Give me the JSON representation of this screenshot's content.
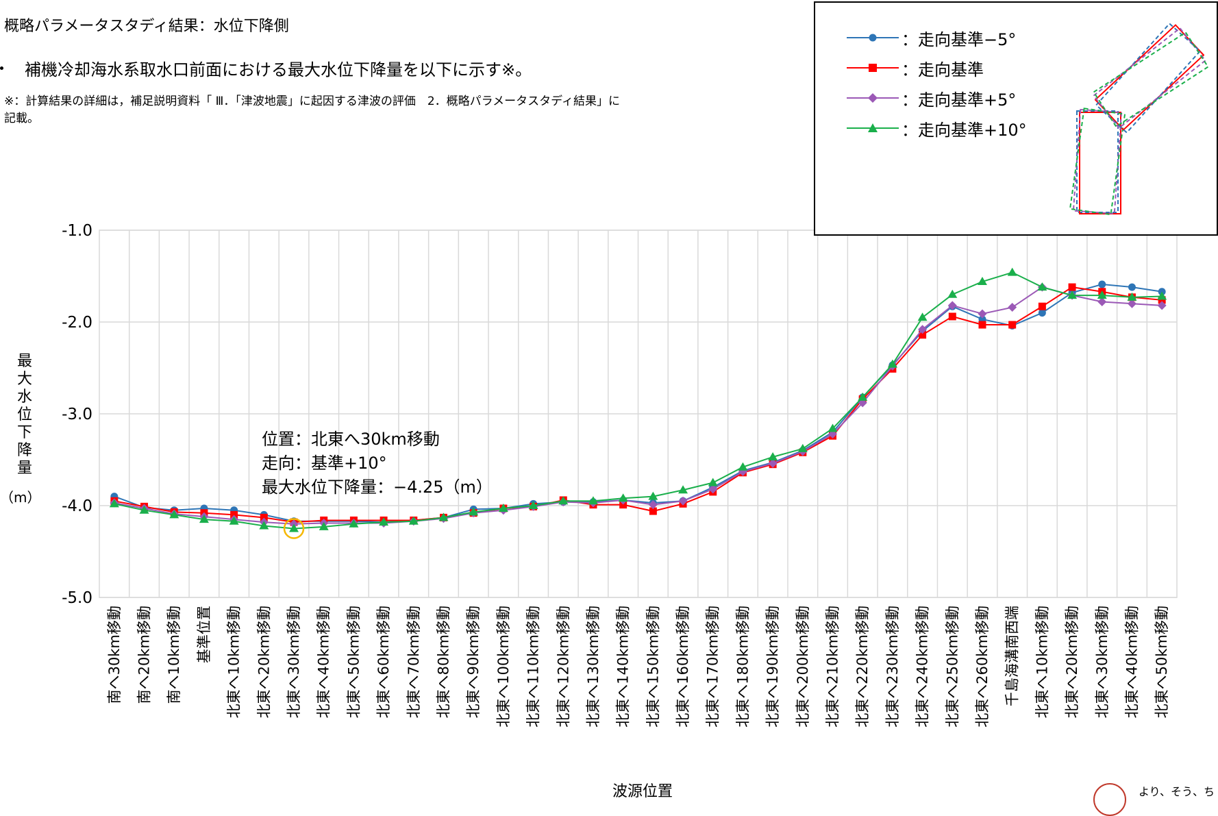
{
  "title": "概略パラメータスタディ結果：水位下降側",
  "bullet": "補機冷却海水系取水口前面における最大水位下降量を以下に示す※。",
  "note": "※：計算結果の詳細は，補足説明資料「 Ⅲ．「津波地震」に起因する津波の評価　2．概略パラメータスタディ結果」に記載。",
  "annotation": {
    "line1": "位置：北東へ30km移動",
    "line2": "走向：基準+10°",
    "line3": "最大水位下降量：−4.25（m）"
  },
  "ylabel_chars": "最大水位下降量",
  "ylabel_unit": "（m）",
  "xlabel": "波源位置",
  "seal_text": "より、そう、ち",
  "colors": {
    "s1": "#2e75b6",
    "s2": "#ff0000",
    "s3": "#9b59b6",
    "s4": "#1aaf4b",
    "grid": "#d9d9d9",
    "highlight": "#f5b800"
  },
  "legend": [
    {
      "label": "：走向基準−5°",
      "marker": "circle",
      "color": "#2e75b6"
    },
    {
      "label": "：走向基準",
      "marker": "square",
      "color": "#ff0000"
    },
    {
      "label": "：走向基準+5°",
      "marker": "diamond",
      "color": "#9b59b6"
    },
    {
      "label": "：走向基準+10°",
      "marker": "triangle",
      "color": "#1aaf4b"
    }
  ],
  "chart_data": {
    "type": "line",
    "categories": [
      "南へ30km移動",
      "南へ20km移動",
      "南へ10km移動",
      "基準位置",
      "北東へ10km移動",
      "北東へ20km移動",
      "北東へ30km移動",
      "北東へ40km移動",
      "北東へ50km移動",
      "北東へ60km移動",
      "北東へ70km移動",
      "北東へ80km移動",
      "北東へ90km移動",
      "北東へ100km移動",
      "北東へ110km移動",
      "北東へ120km移動",
      "北東へ130km移動",
      "北東へ140km移動",
      "北東へ150km移動",
      "北東へ160km移動",
      "北東へ170km移動",
      "北東へ180km移動",
      "北東へ190km移動",
      "北東へ200km移動",
      "北東へ210km移動",
      "北東へ220km移動",
      "北東へ230km移動",
      "北東へ240km移動",
      "北東へ250km移動",
      "北東へ260km移動",
      "千島海溝南西端",
      "北東へ10km移動",
      "北東へ20km移動",
      "北東へ30km移動",
      "北東へ40km移動",
      "北東へ50km移動"
    ],
    "ylim": [
      -5.0,
      -1.0
    ],
    "yticks": [
      "-1.0",
      "-2.0",
      "-3.0",
      "-4.0",
      "-5.0"
    ],
    "grid": true,
    "series": [
      {
        "name": "走向基準−5°",
        "values": [
          -3.9,
          -4.02,
          -4.05,
          -4.03,
          -4.05,
          -4.1,
          -4.17,
          -4.17,
          -4.17,
          -4.18,
          -4.16,
          -4.13,
          -4.04,
          -4.03,
          -3.98,
          -3.96,
          -3.96,
          -3.94,
          -3.97,
          -3.95,
          -3.8,
          -3.62,
          -3.53,
          -3.4,
          -3.2,
          -2.82,
          -2.47,
          -2.1,
          -1.83,
          -1.97,
          -2.04,
          -1.9,
          -1.68,
          -1.59,
          -1.62,
          -1.67
        ]
      },
      {
        "name": "走向基準",
        "values": [
          -3.95,
          -4.01,
          -4.07,
          -4.08,
          -4.1,
          -4.13,
          -4.18,
          -4.16,
          -4.16,
          -4.16,
          -4.16,
          -4.13,
          -4.08,
          -4.03,
          -4.01,
          -3.94,
          -3.99,
          -3.99,
          -4.06,
          -3.98,
          -3.85,
          -3.64,
          -3.55,
          -3.42,
          -3.24,
          -2.84,
          -2.51,
          -2.14,
          -1.94,
          -2.03,
          -2.03,
          -1.83,
          -1.62,
          -1.67,
          -1.73,
          -1.76
        ]
      },
      {
        "name": "走向基準+5°",
        "values": [
          -3.97,
          -4.03,
          -4.09,
          -4.12,
          -4.15,
          -4.18,
          -4.2,
          -4.19,
          -4.19,
          -4.19,
          -4.17,
          -4.14,
          -4.08,
          -4.05,
          -4.01,
          -3.96,
          -3.97,
          -3.94,
          -3.99,
          -3.95,
          -3.82,
          -3.63,
          -3.54,
          -3.41,
          -3.22,
          -2.88,
          -2.48,
          -2.08,
          -1.82,
          -1.91,
          -1.84,
          -1.62,
          -1.71,
          -1.78,
          -1.8,
          -1.82
        ]
      },
      {
        "name": "走向基準+10°",
        "values": [
          -3.98,
          -4.05,
          -4.1,
          -4.15,
          -4.17,
          -4.22,
          -4.25,
          -4.23,
          -4.2,
          -4.18,
          -4.17,
          -4.13,
          -4.07,
          -4.03,
          -4.0,
          -3.95,
          -3.95,
          -3.92,
          -3.9,
          -3.83,
          -3.75,
          -3.58,
          -3.47,
          -3.38,
          -3.16,
          -2.82,
          -2.46,
          -1.95,
          -1.7,
          -1.56,
          -1.46,
          -1.62,
          -1.71,
          -1.71,
          -1.73,
          -1.72
        ]
      }
    ],
    "highlight": {
      "category_index": 6,
      "value": -4.25
    }
  }
}
